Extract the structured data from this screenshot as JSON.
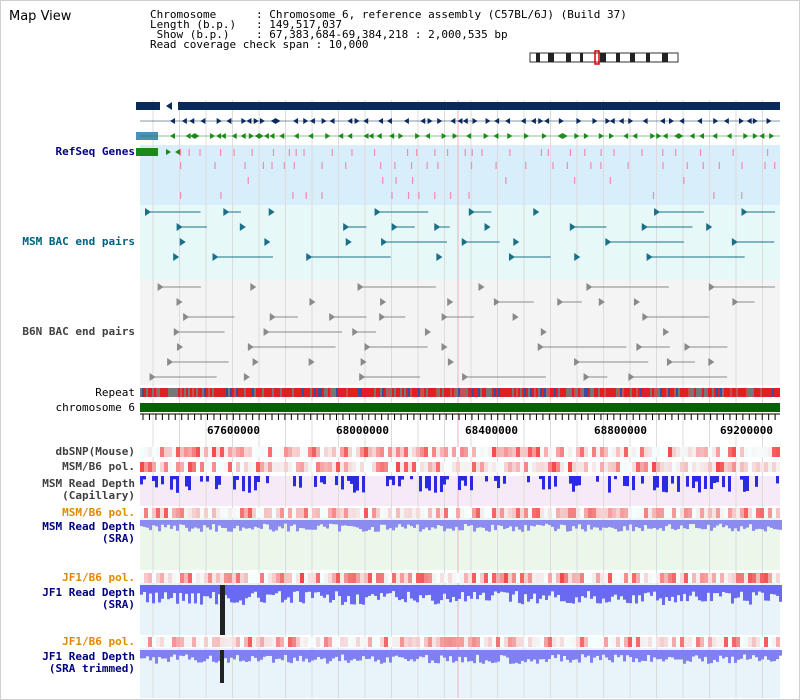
{
  "title": "Map View",
  "info": {
    "line1": "Chromosome      : Chromosome 6, reference assembly (C57BL/6J) (Build 37)",
    "line2": "Length (b.p.)   : 149,517,037",
    "line3": " Show (b.p.)    : 67,383,684-69,384,218 : 2,000,535 bp",
    "line4": "Read coverage check span : 10,000"
  },
  "tracks": {
    "refseq": "RefSeq Genes",
    "msm_bac": "MSM BAC end pairs",
    "b6n_bac": "B6N BAC end pairs",
    "repeat": "Repeat",
    "chromosome": "chromosome 6",
    "dbsnp": "dbSNP(Mouse)",
    "msm_b6_pol_1": "MSM/B6 pol.",
    "msm_depth_cap_1": "MSM Read Depth",
    "msm_depth_cap_2": "(Capillary)",
    "msm_b6_pol_2": "MSM/B6 pol.",
    "msm_depth_sra_1": "MSM Read Depth",
    "msm_depth_sra_2": "(SRA)",
    "jf1_b6_pol_1": "JF1/B6 pol.",
    "jf1_depth_sra_1": "JF1 Read Depth",
    "jf1_depth_sra_2": "(SRA)",
    "jf1_b6_pol_2": "JF1/B6 pol.",
    "jf1_depth_trim_1": "JF1 Read Depth",
    "jf1_depth_trim_2": "(SRA trimmed)"
  },
  "axis_ticks": [
    "67600000",
    "68000000",
    "68400000",
    "68800000",
    "69200000"
  ],
  "colors": {
    "navy": "#0b2a5c",
    "gene_green": "#1a8a1a",
    "refseq_bg": "#d8eefa",
    "msm_bg": "#e6f8f8",
    "b6n_bg": "#f4f4f4",
    "depth_blue": "#6a6af0",
    "snp_red": "#e84040",
    "chrom_green": "#006400"
  }
}
